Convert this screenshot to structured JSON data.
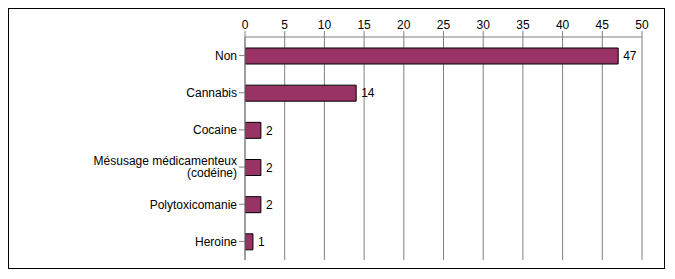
{
  "chart_data": {
    "type": "bar",
    "orientation": "horizontal",
    "categories": [
      "Non",
      "Cannabis",
      "Cocaine",
      "Mésusage médicamenteux (codéine)",
      "Polytoxicomanie",
      "Heroine"
    ],
    "values": [
      47,
      14,
      2,
      2,
      2,
      1
    ],
    "color": "#993366",
    "xlim": [
      0,
      50
    ],
    "xticks": [
      0,
      5,
      10,
      15,
      20,
      25,
      30,
      35,
      40,
      45,
      50
    ],
    "grid": true,
    "data_labels": true
  }
}
